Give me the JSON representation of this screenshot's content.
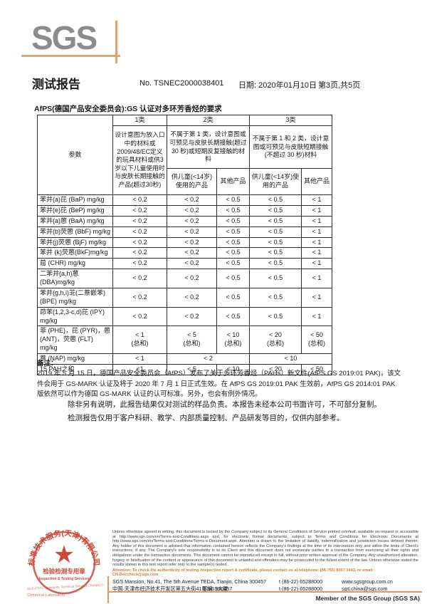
{
  "colors": {
    "logo_gray": "#8c8c8c",
    "tan_line": "#d9a571",
    "accent_orange": "#e0762a",
    "stamp_red": "#c63a28",
    "border_black": "#2b2b2b"
  },
  "header": {
    "logo_text": "SGS",
    "report_title": "测试报告",
    "report_no": "No. TSNEC2000038401",
    "report_date": "日期: 2020年01月10日",
    "page_info": "第3页,共5页"
  },
  "section_title": "AfPS(德国产品安全委员会):GS 认证对多环芳香烃的要求",
  "table": {
    "param_header": "参数",
    "cat1_label": "1类",
    "cat2_label": "2类",
    "cat3_label": "3类",
    "cat1_desc": "设计意图为放入口中的材料或2009/48/EC定义的玩具材料或供3岁以下儿童使用时与皮肤长期接触的产品(超过30秒)",
    "cat2_desc": "不属于第 1 类，设计意图或可预见与皮肤长期接触(超过 30 秒)或短期反复接触的材料",
    "cat3_desc": "不属于第 1 和 2 类，设计意图或可预见与皮肤短期接触(不超过 30 秒)材料",
    "cat2_sub1": "供儿童(<14岁)使用的产品",
    "cat2_sub2": "其他产品",
    "cat3_sub1": "供儿童(<14岁)使用的产品",
    "cat3_sub2": "其他产品",
    "rows": [
      {
        "param": "苯并(a)芘 (BaP) mg/kg",
        "type": "normal",
        "values": [
          "< 0.2",
          "< 0.2",
          "< 0.5",
          "< 0.5",
          "< 1"
        ]
      },
      {
        "param": "苯并(e)芘 (BeP) mg/kg",
        "type": "normal",
        "values": [
          "< 0.2",
          "< 0.2",
          "< 0.5",
          "< 0.5",
          "< 1"
        ]
      },
      {
        "param": "苯并(a)蒽 (BaA) mg/kg",
        "type": "normal",
        "values": [
          "< 0.2",
          "< 0.2",
          "< 0.5",
          "< 0.5",
          "< 1"
        ]
      },
      {
        "param": "苯并(b)荧蒽 (BbF) mg/kg",
        "type": "normal",
        "values": [
          "< 0.2",
          "< 0.2",
          "< 0.5",
          "< 0.5",
          "< 1"
        ]
      },
      {
        "param": "苯并(j)荧蒽 (BjF) mg/kg",
        "type": "normal",
        "values": [
          "< 0.2",
          "< 0.2",
          "< 0.5",
          "< 0.5",
          "< 1"
        ]
      },
      {
        "param": "苯并 (k)荧蒽(BkF)mg/kg",
        "type": "normal",
        "values": [
          "< 0.2",
          "< 0.2",
          "< 0.5",
          "< 0.5",
          "< 1"
        ]
      },
      {
        "param": "䓛 (CHR) mg/kg",
        "type": "normal",
        "values": [
          "< 0.2",
          "< 0.2",
          "< 0.5",
          "< 0.5",
          "< 1"
        ]
      },
      {
        "param": "二苯并(a,h)蒽(DBA)mg/kg",
        "type": "normal",
        "values": [
          "< 0.2",
          "< 0.2",
          "< 0.5",
          "< 0.5",
          "< 1"
        ]
      },
      {
        "param": "苯并(g,h,i)苝(二萘嵌苯) (BPE) mg/kg",
        "type": "normal",
        "values": [
          "< 0.2",
          "< 0.2",
          "< 0.5",
          "< 0.5",
          "< 1"
        ]
      },
      {
        "param": "茚苯(1,2,3-c,d)芘 (IPY) mg/kg",
        "type": "normal",
        "values": [
          "< 0.2",
          "< 0.2",
          "< 0.5",
          "< 0.5",
          "< 1"
        ]
      },
      {
        "param": "菲 (PHE)，芘 (PYR)，蒽 (ANT)，荧蒽 (FLT) mg/kg",
        "type": "sum",
        "suffix": "(总和)",
        "values": [
          "< 1",
          "< 5",
          "< 10",
          "< 20",
          "< 50"
        ]
      },
      {
        "param": "萘 (NAP) mg/kg",
        "type": "nap",
        "values": [
          "< 1",
          "< 2",
          "< 10"
        ]
      },
      {
        "param": "15 PAH之和",
        "type": "normal",
        "values": [
          "<1",
          "< 5",
          "< 10",
          "< 20",
          "< 50"
        ]
      }
    ]
  },
  "note": {
    "label": "备注：",
    "text": "2019 年 5 月 15 日，德国产品安全委员会（AfPS）发布了关于多环芳香烃（PAHs）新文件(AfPS GS 2019:01 PAK)，该文件会用于 GS-MARK 认证及将于 2020 年 7 月 1 日正式生效。在 AfPS GS 2019:01 PAK 生效前，AfPS GS 2014:01 PAK 版依然可以作为德国 GS-MARK 认证的认可标准。另外，也会有例外情况。"
  },
  "disclaimer": {
    "line1": "除非另有说明，此报告结果仅对测试的样品负责。本报告未经本公司书面许可，不可部分复制。",
    "line2": "检测报告仅用于客户科研、教学、内部质量控制、产品研发等目的，仅供内部参考。"
  },
  "footer": {
    "legal_text": "Unless otherwise agreed in writing, this document is issued by the Company subject to its General Conditions of Service printed overleaf, available on request or accessible at http://www.sgs.com/en/Terms-and-Conditions.aspx and, for electronic format documents, subject to Terms and Conditions for Electronic Documents at http://www.sgs.com/en/Terms-and-Conditions/Terms-e-Document.aspx. Attention is drawn to the limitation of liability, indemnification and jurisdiction issues defined therein. Any holder of this document is advised that information contained hereon reflects the Company's findings at the time of its intervention only and within the limits of Client's instructions, if any. The Company's sole responsibility is to its Client and this document does not exonerate parties to a transaction from exercising all their rights and obligations under the transaction documents. This document cannot be reproduced except in full, without prior written approval of the Company. Any unauthorized alteration, forgery or falsification of the content or appearance of this document is unlawful and offenders may be prosecuted to the fullest extent of the law. Unless otherwise stated the results shown in this test report refer only to the sample(s) tested .",
    "attention_text": "Attention: To check the authenticity of testing /inspection report & certificate, please contact us at telephone: (86-755) 8307 1443, or email: CN.Doccheck@sgs.com",
    "address_en": "SGS Mansion, No.41, The 5th Avenue TEDA, Tianjin, China 300457",
    "address_cn": "中国·天津市经济技术开发区第五大街41号SGS大厦",
    "postcode": "邮编: 300457",
    "phone_en": "t (86-22) 65288000",
    "phone_cn": "t (86-22) 65288000",
    "website": "www.sgsgroup.com.cn",
    "email": "sgs.china@sgs.com",
    "member_text": "Member of the SGS Group (SGS SA)",
    "stamp": {
      "arc_text": "标准技术服务(天津)有限公司",
      "star": "★",
      "line1": "检验检测专用章",
      "line2": "Inspection & Testing Services",
      "company1": "SGS-CSTC Standards Technical Services (Tianjin) Co.,Ltd.",
      "company2": "Chemical Laboratory"
    }
  }
}
